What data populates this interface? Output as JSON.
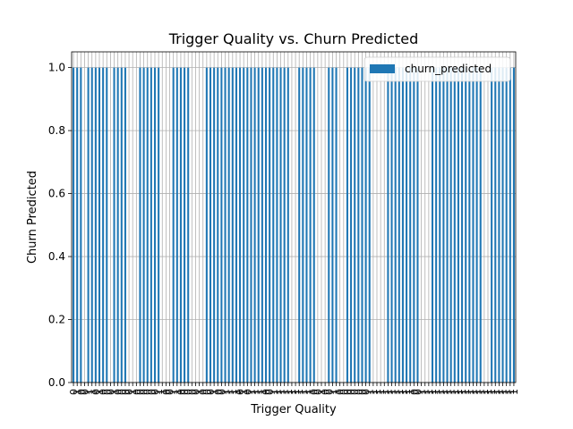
{
  "chart_data": {
    "type": "bar",
    "title": "Trigger Quality vs. Churn Predicted",
    "xlabel": "Trigger Quality",
    "ylabel": "Churn Predicted",
    "ylim": [
      0,
      1.05
    ],
    "yticks": [
      "0.0",
      "0.2",
      "0.4",
      "0.6",
      "0.8",
      "1.0"
    ],
    "grid": true,
    "legend_position": "upper right",
    "categories": [
      "0",
      "1",
      "0",
      "0",
      "1",
      "1",
      "0",
      "1",
      "0",
      "0",
      "0",
      "1",
      "0",
      "0",
      "0",
      "0",
      "1",
      "0",
      "0",
      "0",
      "0",
      "0",
      "0",
      "1",
      "1",
      "0",
      "0",
      "1",
      "1",
      "0",
      "0",
      "0",
      "0",
      "0",
      "1",
      "0",
      "0",
      "0",
      "1",
      "0",
      "0",
      "1",
      "1",
      "1",
      "1",
      "0",
      "1",
      "0",
      "1",
      "1",
      "1",
      "1",
      "0",
      "0",
      "1",
      "1",
      "1",
      "1",
      "1",
      "1",
      "1",
      "1",
      "1",
      "1",
      "1",
      "0",
      "0",
      "1",
      "0",
      "0",
      "1",
      "1",
      "0",
      "0",
      "0",
      "0",
      "0",
      "0",
      "0",
      "0",
      "1",
      "1",
      "1",
      "1",
      "1",
      "1",
      "1",
      "1",
      "1",
      "1",
      "1",
      "1",
      "0",
      "0",
      "1",
      "1",
      "1",
      "1",
      "1",
      "1",
      "1",
      "1",
      "1",
      "1",
      "1",
      "1",
      "1",
      "1",
      "1",
      "1",
      "1",
      "1",
      "1",
      "1",
      "1",
      "1",
      "1",
      "1",
      "1",
      "1"
    ],
    "series": [
      {
        "name": "churn_predicted",
        "color": "#1f77b4",
        "values": [
          1,
          1,
          1,
          0,
          1,
          1,
          1,
          1,
          1,
          1,
          0,
          1,
          1,
          1,
          1,
          0,
          0,
          0,
          1,
          1,
          1,
          1,
          1,
          1,
          0,
          0,
          0,
          1,
          1,
          1,
          1,
          1,
          0,
          0,
          0,
          0,
          1,
          1,
          1,
          1,
          1,
          1,
          1,
          1,
          1,
          1,
          1,
          1,
          1,
          1,
          1,
          1,
          1,
          1,
          1,
          1,
          1,
          1,
          1,
          0,
          0,
          1,
          1,
          1,
          1,
          1,
          0,
          0,
          0,
          1,
          1,
          1,
          0,
          0,
          1,
          1,
          1,
          1,
          1,
          1,
          1,
          0,
          0,
          0,
          0,
          1,
          1,
          1,
          1,
          1,
          1,
          1,
          1,
          1,
          0,
          0,
          0,
          1,
          1,
          1,
          1,
          1,
          1,
          1,
          1,
          1,
          1,
          1,
          1,
          1,
          1,
          0,
          0,
          1,
          1,
          1,
          1,
          1,
          1,
          1
        ]
      }
    ]
  }
}
